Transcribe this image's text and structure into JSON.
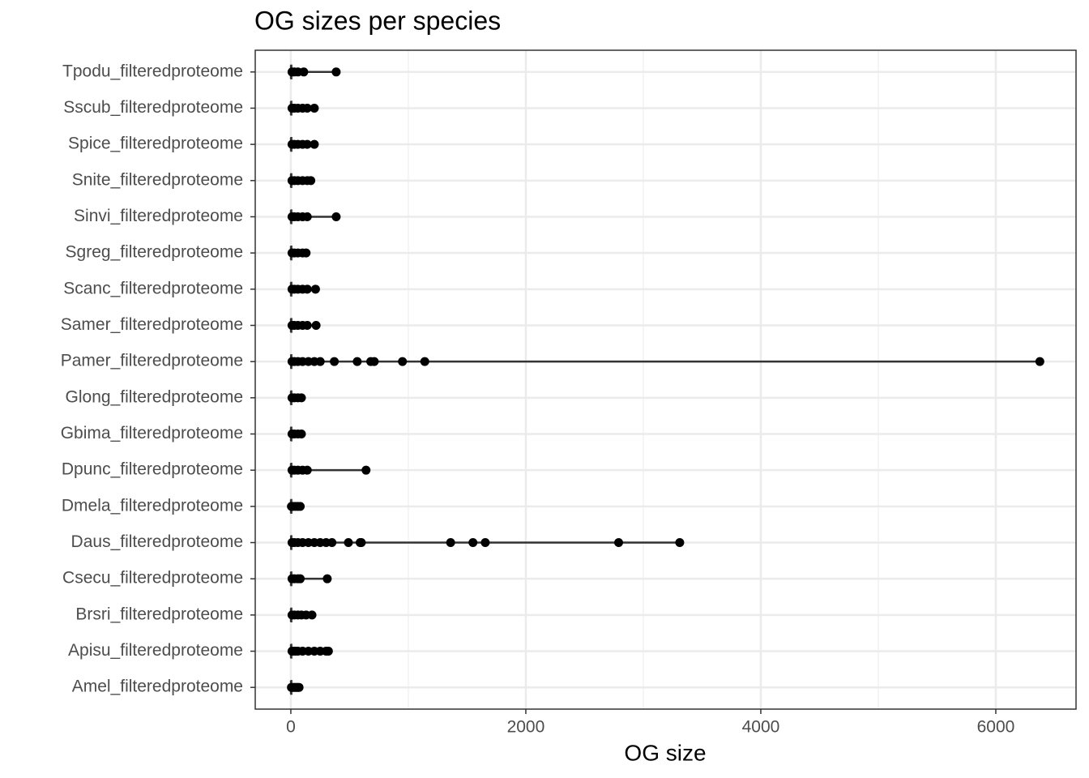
{
  "chart_data": {
    "type": "boxplot",
    "title": "OG sizes per species",
    "x_label": "OG size",
    "categories": [
      "Amel_filteredproteome",
      "Apisu_filteredproteome",
      "Brsri_filteredproteome",
      "Csecu_filteredproteome",
      "Daus_filteredproteome",
      "Dmela_filteredproteome",
      "Dpunc_filteredproteome",
      "Gbima_filteredproteome",
      "Glong_filteredproteome",
      "Pamer_filteredproteome",
      "Samer_filteredproteome",
      "Scanc_filteredproteome",
      "Sgreg_filteredproteome",
      "Sinvi_filteredproteome",
      "Snite_filteredproteome",
      "Spice_filteredproteome",
      "Sscub_filteredproteome",
      "Tpodu_filteredproteome"
    ],
    "boxes": [
      {
        "whisker_low": 1,
        "q1": 1,
        "median": 1,
        "q3": 2,
        "whisker_high": 4,
        "outliers": [
          5,
          10,
          20,
          30,
          40,
          50,
          60,
          70
        ]
      },
      {
        "whisker_low": 1,
        "q1": 1,
        "median": 1,
        "q3": 2,
        "whisker_high": 4,
        "outliers": [
          10,
          20,
          40,
          60,
          100,
          150,
          200,
          250,
          300,
          320
        ]
      },
      {
        "whisker_low": 1,
        "q1": 1,
        "median": 1,
        "q3": 2,
        "whisker_high": 4,
        "outliers": [
          10,
          30,
          60,
          90,
          130,
          180
        ]
      },
      {
        "whisker_low": 1,
        "q1": 1,
        "median": 1,
        "q3": 2,
        "whisker_high": 4,
        "outliers": [
          10,
          30,
          60,
          80,
          310
        ]
      },
      {
        "whisker_low": 1,
        "q1": 1,
        "median": 2,
        "q3": 4,
        "whisker_high": 8,
        "outliers": [
          10,
          30,
          60,
          100,
          150,
          200,
          250,
          300,
          350,
          490,
          590,
          600,
          1360,
          1550,
          1655,
          2790,
          3310
        ]
      },
      {
        "whisker_low": 1,
        "q1": 1,
        "median": 1,
        "q3": 2,
        "whisker_high": 4,
        "outliers": [
          5,
          10,
          20,
          40,
          60,
          80
        ]
      },
      {
        "whisker_low": 1,
        "q1": 1,
        "median": 1,
        "q3": 2,
        "whisker_high": 4,
        "outliers": [
          10,
          30,
          60,
          100,
          140,
          640
        ]
      },
      {
        "whisker_low": 1,
        "q1": 1,
        "median": 1,
        "q3": 2,
        "whisker_high": 4,
        "outliers": [
          10,
          30,
          60,
          90
        ]
      },
      {
        "whisker_low": 1,
        "q1": 1,
        "median": 1,
        "q3": 2,
        "whisker_high": 4,
        "outliers": [
          10,
          30,
          60,
          90
        ]
      },
      {
        "whisker_low": 1,
        "q1": 1,
        "median": 2,
        "q3": 4,
        "whisker_high": 8,
        "outliers": [
          10,
          30,
          60,
          100,
          150,
          200,
          250,
          370,
          565,
          680,
          710,
          950,
          1140,
          6375
        ]
      },
      {
        "whisker_low": 1,
        "q1": 1,
        "median": 1,
        "q3": 2,
        "whisker_high": 4,
        "outliers": [
          10,
          30,
          60,
          100,
          140,
          215
        ]
      },
      {
        "whisker_low": 1,
        "q1": 1,
        "median": 1,
        "q3": 2,
        "whisker_high": 4,
        "outliers": [
          10,
          30,
          60,
          100,
          140,
          210
        ]
      },
      {
        "whisker_low": 1,
        "q1": 1,
        "median": 1,
        "q3": 2,
        "whisker_high": 4,
        "outliers": [
          10,
          30,
          60,
          100,
          130
        ]
      },
      {
        "whisker_low": 1,
        "q1": 1,
        "median": 1,
        "q3": 2,
        "whisker_high": 4,
        "outliers": [
          10,
          30,
          60,
          100,
          140,
          386
        ]
      },
      {
        "whisker_low": 1,
        "q1": 1,
        "median": 1,
        "q3": 2,
        "whisker_high": 4,
        "outliers": [
          10,
          30,
          60,
          100,
          140,
          170
        ]
      },
      {
        "whisker_low": 1,
        "q1": 1,
        "median": 1,
        "q3": 2,
        "whisker_high": 4,
        "outliers": [
          10,
          30,
          60,
          100,
          140,
          200
        ]
      },
      {
        "whisker_low": 1,
        "q1": 1,
        "median": 1,
        "q3": 2,
        "whisker_high": 4,
        "outliers": [
          10,
          30,
          60,
          100,
          140,
          200
        ]
      },
      {
        "whisker_low": 1,
        "q1": 1,
        "median": 1,
        "q3": 2,
        "whisker_high": 4,
        "outliers": [
          10,
          30,
          60,
          110,
          386
        ]
      }
    ],
    "color": "#000000",
    "xlim": [
      -303,
      6683
    ],
    "xticks": [
      0,
      2000,
      4000,
      6000
    ],
    "x_minor_ticks": [
      1000,
      3000,
      5000
    ],
    "grid": true
  }
}
